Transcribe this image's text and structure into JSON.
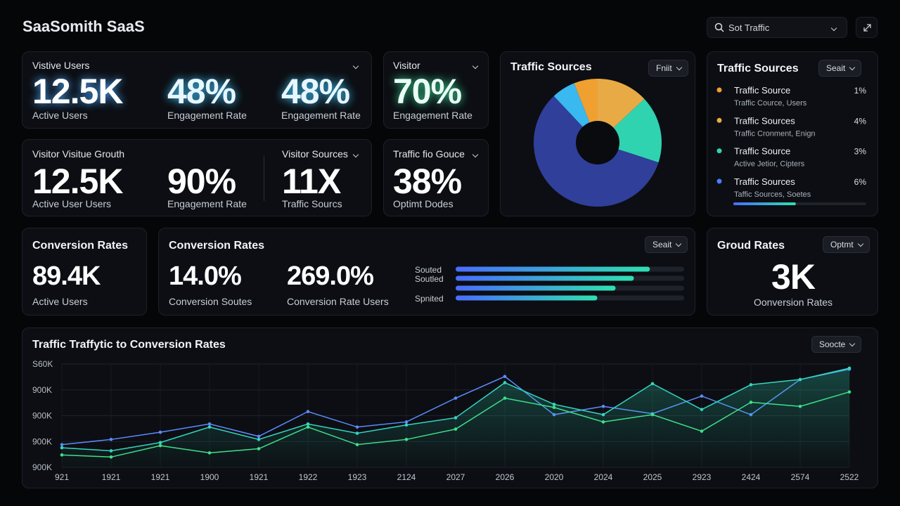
{
  "header": {
    "title": "SaaSomith SaaS",
    "search": "Sot Traffic"
  },
  "row1": {
    "card1": {
      "title": "Vistive Users",
      "metrics": [
        {
          "value": "12.5K",
          "label": "Active Users"
        },
        {
          "value": "48%",
          "label": "Engagement Rate"
        },
        {
          "value": "48%",
          "label": "Engagement Rate"
        }
      ]
    },
    "card2": {
      "title": "Visitor",
      "metric": {
        "value": "70%",
        "label": "Engagement Rate"
      }
    }
  },
  "row2": {
    "card3": {
      "title": "Visitor Visitue Grouth",
      "metrics": [
        {
          "value": "12.5K",
          "label": "Active User Users"
        },
        {
          "value": "90%",
          "label": "Engagement Rate"
        }
      ],
      "title2": "Visitor Sources",
      "metric2": {
        "value": "11X",
        "label": "Traffic Sourcs"
      }
    },
    "card4": {
      "title": "Traffic fio Gouce",
      "metric": {
        "value": "38%",
        "label": "Optimt Dodes"
      }
    }
  },
  "pie_card": {
    "title": "Traffic Sources",
    "dropdown": "Fniit"
  },
  "traffic_list": {
    "title": "Traffic Sources",
    "dropdown": "Seait",
    "items": [
      {
        "name": "Traffic Source",
        "sub": "Traffic Cource, Users",
        "pct": "1%",
        "color": "#f0a030"
      },
      {
        "name": "Traffic Sources",
        "sub": "Traffic Cronment, Enign",
        "pct": "4%",
        "color": "#e8b040"
      },
      {
        "name": "Traffic Source",
        "sub": "Active Jetior, Cipters",
        "pct": "3%",
        "color": "#2fd3b0"
      },
      {
        "name": "Traffic Sources",
        "sub": "Taffic Sources, Soetes",
        "pct": "6%",
        "color": "#4a7fff"
      }
    ],
    "progress": 47
  },
  "conv_small": {
    "title": "Conversion Rates",
    "value": "89.4K",
    "label": "Active Users"
  },
  "conv_big": {
    "title": "Conversion Rates",
    "dropdown": "Seait",
    "metrics": [
      {
        "value": "14.0%",
        "label": "Conversion Soutes"
      },
      {
        "value": "269.0%",
        "label": "Conversion Rate Users"
      }
    ]
  },
  "groud": {
    "title": "Groud Rates",
    "dropdown": "Optmt",
    "value": "3K",
    "label": "Oonversion Rates"
  },
  "line_card": {
    "title": "Traffic Traffytic to Conversion Rates",
    "dropdown": "Soocte"
  },
  "chart_data": [
    {
      "type": "pie",
      "values": [
        13,
        17,
        58,
        6,
        6
      ],
      "colors": [
        "#e8aa45",
        "#2fd3b0",
        "#2f3f9a",
        "#3ab8f0",
        "#f0a030"
      ]
    },
    {
      "type": "bar",
      "categories": [
        "Souted",
        "Soutled",
        null,
        "Spnited"
      ],
      "values": [
        85,
        78,
        70,
        62
      ],
      "xlim": [
        0,
        100
      ]
    },
    {
      "type": "line",
      "categories": [
        "921",
        "1921",
        "1921",
        "1900",
        "1921",
        "1922",
        "1923",
        "2124",
        "2027",
        "2026",
        "2020",
        "2024",
        "2025",
        "2923",
        "2424",
        "2574",
        "2522"
      ],
      "series": [
        {
          "color": "#5b8cff",
          "values": [
            22,
            27,
            34,
            42,
            30,
            54,
            39,
            44,
            67,
            88,
            51,
            59,
            52,
            69,
            51,
            85,
            95
          ]
        },
        {
          "color": "#33d6c0",
          "values": [
            19,
            16,
            24,
            39,
            27,
            42,
            33,
            41,
            48,
            82,
            61,
            51,
            81,
            56,
            80,
            85,
            96
          ]
        },
        {
          "color": "#3ee08a",
          "values": [
            12,
            10,
            21,
            14,
            18,
            39,
            22,
            27,
            37,
            67,
            58,
            44,
            51,
            35,
            63,
            59,
            73
          ]
        }
      ],
      "ylim": [
        0,
        100
      ],
      "yticks": [
        {
          "value": 100,
          "label": "S60K"
        },
        {
          "value": 75,
          "label": "900K"
        },
        {
          "value": 50,
          "label": "900K"
        },
        {
          "value": 25,
          "label": "900K"
        },
        {
          "value": 0,
          "label": "900K"
        }
      ],
      "grid": true
    }
  ]
}
